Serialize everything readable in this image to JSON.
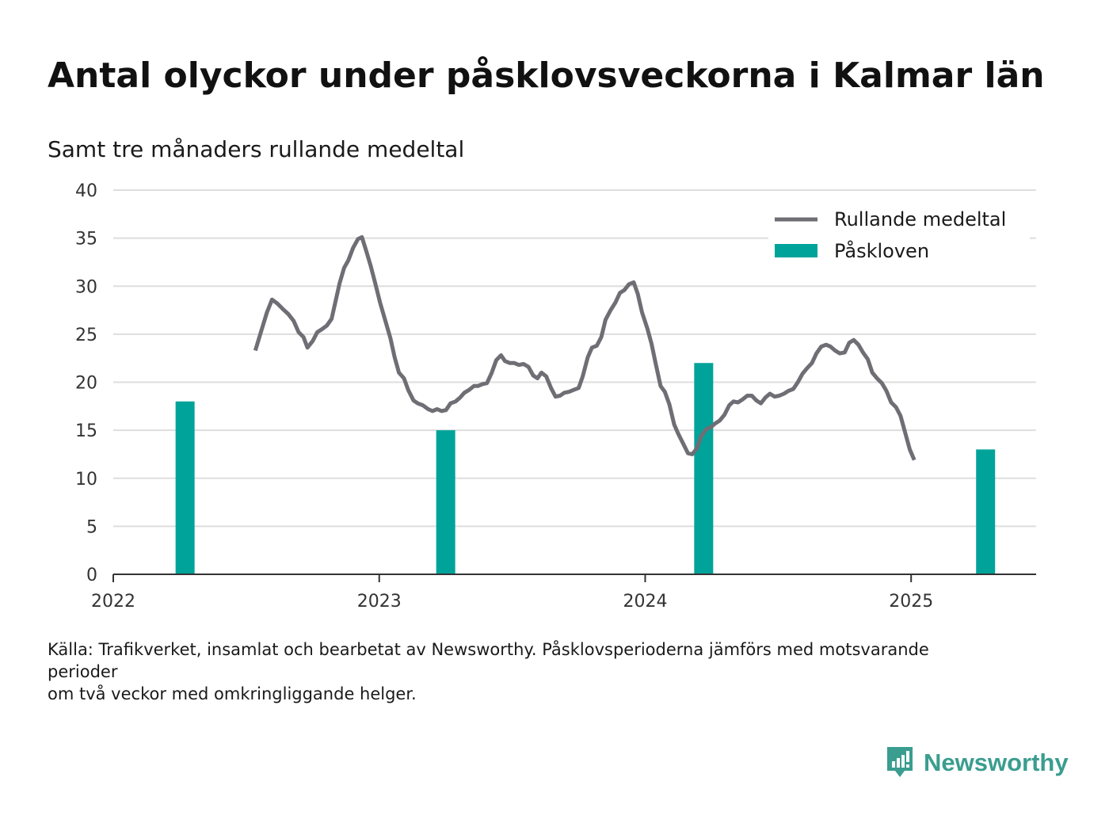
{
  "title": "Antal olyckor under påsklovsveckorna i Kalmar län",
  "subtitle": "Samt tre månaders rullande medeltal",
  "source": {
    "line1": "Källa: Trafikverket, insamlat och bearbetat av Newsworthy. Påsklovsperioderna jämförs med motsvarande",
    "line2": "perioder",
    "line3": "om två veckor med omkringliggande helger."
  },
  "brand": {
    "name": "Newsworthy",
    "icon": "newsworthy-logo-icon",
    "color": "#3a9d8f"
  },
  "colors": {
    "bar": "#00a39a",
    "line": "#6e6e74",
    "grid": "#dedede",
    "axis": "#333333"
  },
  "chart_data": {
    "type": "bar+line",
    "ylim": [
      0,
      40
    ],
    "yticks": [
      "0",
      "5",
      "10",
      "15",
      "20",
      "25",
      "30",
      "35",
      "40"
    ],
    "xlim": [
      2022.0,
      2025.47
    ],
    "xticks": [
      {
        "value": 2022,
        "label": "2022"
      },
      {
        "value": 2023,
        "label": "2023"
      },
      {
        "value": 2024,
        "label": "2024"
      },
      {
        "value": 2025,
        "label": "2025"
      }
    ],
    "grid": true,
    "legend_position": "top-right",
    "legend": [
      {
        "name": "Rullande medeltal",
        "kind": "line"
      },
      {
        "name": "Påskloven",
        "kind": "bar"
      }
    ],
    "bars": {
      "name": "Påskloven",
      "x": [
        2022.27,
        2023.25,
        2024.22,
        2025.28
      ],
      "values": [
        18,
        15,
        22,
        13
      ]
    },
    "line": {
      "name": "Rullande medeltal",
      "points": [
        [
          2022.534,
          23.3
        ],
        [
          2022.556,
          25.3
        ],
        [
          2022.578,
          27.3
        ],
        [
          2022.597,
          28.6
        ],
        [
          2022.617,
          28.2
        ],
        [
          2022.638,
          27.6
        ],
        [
          2022.658,
          27.1
        ],
        [
          2022.678,
          26.4
        ],
        [
          2022.697,
          25.2
        ],
        [
          2022.715,
          24.7
        ],
        [
          2022.73,
          23.6
        ],
        [
          2022.75,
          24.3
        ],
        [
          2022.767,
          25.2
        ],
        [
          2022.784,
          25.5
        ],
        [
          2022.803,
          25.9
        ],
        [
          2022.821,
          26.6
        ],
        [
          2022.834,
          28.2
        ],
        [
          2022.851,
          30.3
        ],
        [
          2022.868,
          31.9
        ],
        [
          2022.884,
          32.7
        ],
        [
          2022.902,
          34.0
        ],
        [
          2022.92,
          34.9
        ],
        [
          2022.935,
          35.1
        ],
        [
          2022.952,
          33.6
        ],
        [
          2022.968,
          32.1
        ],
        [
          2022.985,
          30.3
        ],
        [
          2023.004,
          28.2
        ],
        [
          2023.024,
          26.3
        ],
        [
          2023.042,
          24.6
        ],
        [
          2023.058,
          22.6
        ],
        [
          2023.074,
          21.0
        ],
        [
          2023.093,
          20.4
        ],
        [
          2023.109,
          19.2
        ],
        [
          2023.129,
          18.1
        ],
        [
          2023.145,
          17.8
        ],
        [
          2023.164,
          17.6
        ],
        [
          2023.184,
          17.2
        ],
        [
          2023.2,
          17.0
        ],
        [
          2023.218,
          17.2
        ],
        [
          2023.234,
          17.0
        ],
        [
          2023.251,
          17.1
        ],
        [
          2023.268,
          17.8
        ],
        [
          2023.287,
          18.0
        ],
        [
          2023.304,
          18.4
        ],
        [
          2023.32,
          18.9
        ],
        [
          2023.338,
          19.2
        ],
        [
          2023.356,
          19.6
        ],
        [
          2023.371,
          19.6
        ],
        [
          2023.388,
          19.8
        ],
        [
          2023.405,
          19.9
        ],
        [
          2023.423,
          21.0
        ],
        [
          2023.44,
          22.3
        ],
        [
          2023.458,
          22.8
        ],
        [
          2023.473,
          22.2
        ],
        [
          2023.491,
          22.0
        ],
        [
          2023.508,
          22.0
        ],
        [
          2023.525,
          21.8
        ],
        [
          2023.543,
          21.9
        ],
        [
          2023.561,
          21.6
        ],
        [
          2023.579,
          20.7
        ],
        [
          2023.595,
          20.4
        ],
        [
          2023.61,
          21.0
        ],
        [
          2023.628,
          20.6
        ],
        [
          2023.646,
          19.4
        ],
        [
          2023.663,
          18.5
        ],
        [
          2023.68,
          18.6
        ],
        [
          2023.696,
          18.9
        ],
        [
          2023.714,
          19.0
        ],
        [
          2023.731,
          19.2
        ],
        [
          2023.75,
          19.4
        ],
        [
          2023.765,
          20.6
        ],
        [
          2023.784,
          22.6
        ],
        [
          2023.8,
          23.6
        ],
        [
          2023.818,
          23.8
        ],
        [
          2023.835,
          24.7
        ],
        [
          2023.851,
          26.5
        ],
        [
          2023.87,
          27.5
        ],
        [
          2023.888,
          28.3
        ],
        [
          2023.905,
          29.3
        ],
        [
          2023.922,
          29.6
        ],
        [
          2023.939,
          30.2
        ],
        [
          2023.957,
          30.4
        ],
        [
          2023.972,
          29.2
        ],
        [
          2023.988,
          27.3
        ],
        [
          2024.008,
          25.6
        ],
        [
          2024.024,
          24.0
        ],
        [
          2024.039,
          22.0
        ],
        [
          2024.058,
          19.6
        ],
        [
          2024.074,
          19.0
        ],
        [
          2024.091,
          17.7
        ],
        [
          2024.109,
          15.6
        ],
        [
          2024.125,
          14.6
        ],
        [
          2024.143,
          13.6
        ],
        [
          2024.161,
          12.6
        ],
        [
          2024.177,
          12.5
        ],
        [
          2024.194,
          13.1
        ],
        [
          2024.211,
          14.4
        ],
        [
          2024.229,
          15.1
        ],
        [
          2024.246,
          15.3
        ],
        [
          2024.263,
          15.7
        ],
        [
          2024.28,
          16.0
        ],
        [
          2024.298,
          16.6
        ],
        [
          2024.316,
          17.6
        ],
        [
          2024.332,
          18.0
        ],
        [
          2024.349,
          17.9
        ],
        [
          2024.366,
          18.2
        ],
        [
          2024.384,
          18.6
        ],
        [
          2024.401,
          18.6
        ],
        [
          2024.418,
          18.1
        ],
        [
          2024.435,
          17.8
        ],
        [
          2024.452,
          18.4
        ],
        [
          2024.469,
          18.8
        ],
        [
          2024.487,
          18.5
        ],
        [
          2024.504,
          18.6
        ],
        [
          2024.522,
          18.8
        ],
        [
          2024.539,
          19.1
        ],
        [
          2024.557,
          19.3
        ],
        [
          2024.574,
          20.0
        ],
        [
          2024.592,
          20.9
        ],
        [
          2024.61,
          21.5
        ],
        [
          2024.627,
          22.0
        ],
        [
          2024.644,
          23.0
        ],
        [
          2024.662,
          23.7
        ],
        [
          2024.68,
          23.9
        ],
        [
          2024.697,
          23.7
        ],
        [
          2024.714,
          23.3
        ],
        [
          2024.732,
          23.0
        ],
        [
          2024.75,
          23.1
        ],
        [
          2024.767,
          24.1
        ],
        [
          2024.784,
          24.4
        ],
        [
          2024.802,
          23.9
        ],
        [
          2024.819,
          23.1
        ],
        [
          2024.837,
          22.4
        ],
        [
          2024.854,
          21.0
        ],
        [
          2024.872,
          20.4
        ],
        [
          2024.89,
          19.9
        ],
        [
          2024.907,
          19.1
        ],
        [
          2024.925,
          17.9
        ],
        [
          2024.943,
          17.4
        ],
        [
          2024.96,
          16.5
        ],
        [
          2024.977,
          14.8
        ],
        [
          2024.995,
          13.0
        ],
        [
          2025.012,
          11.9
        ]
      ]
    }
  }
}
